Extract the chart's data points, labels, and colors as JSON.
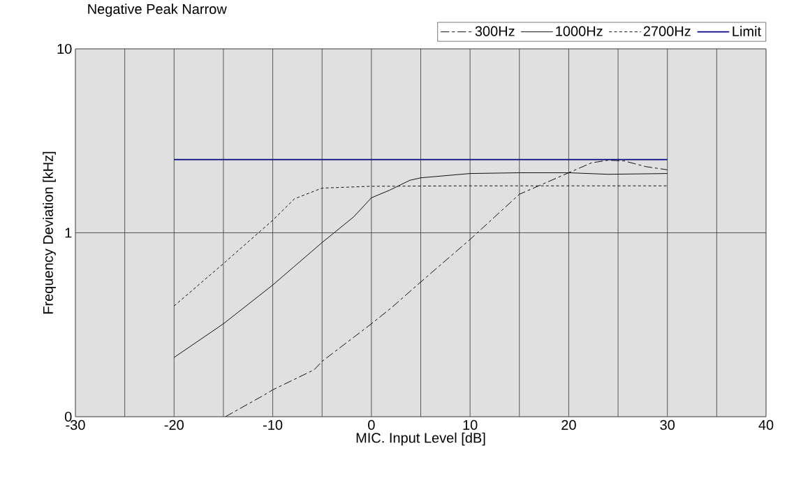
{
  "chart_data": {
    "type": "line",
    "title": "Negative Peak      Narrow",
    "xlabel": "MIC. Input Level [dB]",
    "ylabel": "Frequency Deviation [kHz]",
    "log": "y",
    "grid": true,
    "legend": "top right",
    "xlim": [
      -30,
      40
    ],
    "xticks": [
      -30,
      {
        "value": -25,
        "label": null
      },
      -20,
      {
        "value": -15,
        "label": null
      },
      -10,
      {
        "value": -5,
        "label": null
      },
      0,
      {
        "value": 5,
        "label": null
      },
      10,
      {
        "value": 15,
        "label": null
      },
      20,
      {
        "value": 25,
        "label": null
      },
      30,
      {
        "value": 35,
        "label": null
      },
      40
    ],
    "ylim": [
      0.1,
      10
    ],
    "yticks": [
      {
        "value": 0.1,
        "label": "0"
      },
      1,
      10
    ],
    "series": [
      {
        "name": "300Hz",
        "color": "#000000",
        "line_style": "dashed",
        "x": [
          -14.8,
          -11,
          -10,
          -5.8,
          -5,
          0,
          2,
          5,
          10,
          15,
          20,
          22.3,
          24,
          25.6,
          27.8,
          30
        ],
        "values": [
          0.1,
          0.13,
          0.14,
          0.18,
          0.2,
          0.32,
          0.39,
          0.54,
          0.92,
          1.62,
          2.12,
          2.4,
          2.48,
          2.46,
          2.29,
          2.2
        ]
      },
      {
        "name": "1000Hz",
        "color": "#000000",
        "line_style": "solid",
        "x": [
          -20,
          -15,
          -10,
          -5,
          -1.8,
          0,
          1.8,
          3.9,
          5,
          10,
          15,
          20,
          24,
          30
        ],
        "values": [
          0.21,
          0.32,
          0.52,
          0.885,
          1.22,
          1.55,
          1.7,
          1.93,
          1.99,
          2.1,
          2.12,
          2.12,
          2.08,
          2.1
        ]
      },
      {
        "name": "2700Hz",
        "color": "#000000",
        "line_style": "dotted",
        "x": [
          -20,
          -15,
          -10,
          -7.8,
          -5,
          0,
          10,
          30
        ],
        "values": [
          0.4,
          0.68,
          1.17,
          1.53,
          1.75,
          1.79,
          1.8,
          1.8
        ]
      },
      {
        "name": "Limit",
        "color": "#000080",
        "line_style": "solid",
        "x": [
          -20,
          30
        ],
        "values": [
          2.5,
          2.5
        ]
      }
    ]
  }
}
